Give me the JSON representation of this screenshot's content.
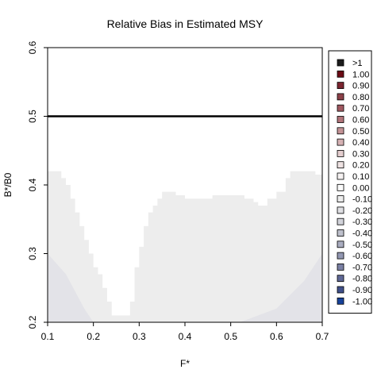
{
  "chart_data": {
    "type": "heatmap",
    "title": "Relative Bias in Estimated MSY",
    "xlabel": "F*",
    "ylabel": "B*/B0",
    "xlim": [
      0.1,
      0.7
    ],
    "ylim": [
      0.2,
      0.6
    ],
    "xticks": [
      "0.1",
      "0.2",
      "0.3",
      "0.4",
      "0.5",
      "0.6",
      "0.7"
    ],
    "yticks": [
      "0.2",
      "0.3",
      "0.4",
      "0.5",
      "0.6"
    ],
    "reference_line": {
      "y": 0.5,
      "color": "#000000"
    },
    "filled_region": {
      "value_label": "0.00 to -0.10",
      "color": "#ededed",
      "upper_boundary": [
        [
          0.1,
          0.42
        ],
        [
          0.12,
          0.42
        ],
        [
          0.13,
          0.41
        ],
        [
          0.14,
          0.4
        ],
        [
          0.15,
          0.38
        ],
        [
          0.16,
          0.36
        ],
        [
          0.17,
          0.34
        ],
        [
          0.18,
          0.32
        ],
        [
          0.19,
          0.3
        ],
        [
          0.2,
          0.28
        ],
        [
          0.21,
          0.27
        ],
        [
          0.22,
          0.25
        ],
        [
          0.23,
          0.23
        ],
        [
          0.24,
          0.21
        ],
        [
          0.25,
          0.21
        ],
        [
          0.27,
          0.21
        ],
        [
          0.28,
          0.23
        ],
        [
          0.29,
          0.28
        ],
        [
          0.3,
          0.31
        ],
        [
          0.31,
          0.34
        ],
        [
          0.32,
          0.36
        ],
        [
          0.33,
          0.37
        ],
        [
          0.34,
          0.38
        ],
        [
          0.35,
          0.39
        ],
        [
          0.37,
          0.39
        ],
        [
          0.38,
          0.385
        ],
        [
          0.4,
          0.38
        ],
        [
          0.45,
          0.38
        ],
        [
          0.46,
          0.385
        ],
        [
          0.52,
          0.385
        ],
        [
          0.53,
          0.38
        ],
        [
          0.55,
          0.375
        ],
        [
          0.56,
          0.37
        ],
        [
          0.57,
          0.37
        ],
        [
          0.58,
          0.38
        ],
        [
          0.6,
          0.39
        ],
        [
          0.62,
          0.41
        ],
        [
          0.63,
          0.42
        ],
        [
          0.68,
          0.42
        ],
        [
          0.685,
          0.415
        ],
        [
          0.7,
          0.415
        ]
      ],
      "shaded_corners": [
        {
          "value_label": "-0.10 to -0.20",
          "color": "#e3e3e8",
          "polygon": [
            [
              0.1,
              0.2
            ],
            [
              0.1,
              0.3
            ],
            [
              0.14,
              0.27
            ],
            [
              0.18,
              0.22
            ],
            [
              0.2,
              0.2
            ]
          ]
        },
        {
          "value_label": "-0.10 to -0.20",
          "color": "#e3e3e8",
          "polygon": [
            [
              0.52,
              0.2
            ],
            [
              0.6,
              0.22
            ],
            [
              0.66,
              0.26
            ],
            [
              0.7,
              0.3
            ],
            [
              0.7,
              0.2
            ]
          ]
        }
      ]
    },
    "legend": {
      "placement": "right",
      "items": [
        {
          "label": ">1",
          "color": "#1c1c1c"
        },
        {
          "label": "1.00",
          "color": "#6b0a14"
        },
        {
          "label": "0.90",
          "color": "#7b2530"
        },
        {
          "label": "0.80",
          "color": "#8b4048"
        },
        {
          "label": "0.70",
          "color": "#a05860"
        },
        {
          "label": "0.60",
          "color": "#b2747a"
        },
        {
          "label": "0.50",
          "color": "#c49396"
        },
        {
          "label": "0.40",
          "color": "#d6b2b4"
        },
        {
          "label": "0.30",
          "color": "#e4cecf"
        },
        {
          "label": "0.20",
          "color": "#efe3e3"
        },
        {
          "label": "0.10",
          "color": "#f6f2f2"
        },
        {
          "label": "0.00",
          "color": "#fbfbfb"
        },
        {
          "label": "-0.10",
          "color": "#ededed"
        },
        {
          "label": "-0.20",
          "color": "#e0e0e4"
        },
        {
          "label": "-0.30",
          "color": "#d2d3da"
        },
        {
          "label": "-0.40",
          "color": "#bec0cc"
        },
        {
          "label": "-0.50",
          "color": "#aaadc0"
        },
        {
          "label": "-0.60",
          "color": "#9297b2"
        },
        {
          "label": "-0.70",
          "color": "#7a80a4"
        },
        {
          "label": "-0.80",
          "color": "#5f6896"
        },
        {
          "label": "-0.90",
          "color": "#40508a"
        },
        {
          "label": "-1.00",
          "color": "#17429a"
        }
      ]
    }
  }
}
